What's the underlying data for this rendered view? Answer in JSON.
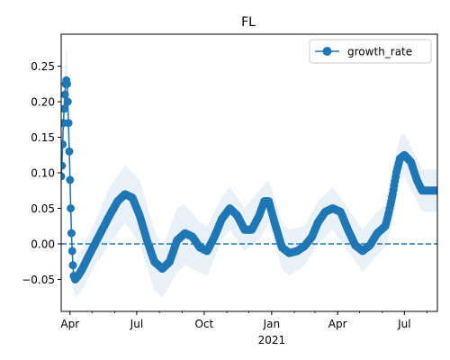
{
  "chart_data": {
    "type": "line",
    "title": "FL",
    "xlabel": "",
    "ylabel": "",
    "x_start": "2020-03-20",
    "x_end": "2021-08-15",
    "x_ticks": [
      {
        "date": "2020-04-01",
        "label": "Apr"
      },
      {
        "date": "2020-07-01",
        "label": "Jul"
      },
      {
        "date": "2020-10-01",
        "label": "Oct"
      },
      {
        "date": "2021-01-01",
        "label": "Jan"
      },
      {
        "date": "2021-04-01",
        "label": "Apr"
      },
      {
        "date": "2021-07-01",
        "label": "Jul"
      }
    ],
    "x_year_label": {
      "date": "2021-01-01",
      "label": "2021"
    },
    "y_ticks": [
      -0.05,
      0.0,
      0.05,
      0.1,
      0.15,
      0.2,
      0.25
    ],
    "y_tick_labels": [
      "−0.05",
      "0.00",
      "0.05",
      "0.10",
      "0.15",
      "0.20",
      "0.25"
    ],
    "ylim": [
      -0.095,
      0.295
    ],
    "grid": false,
    "legend_position": "top-right",
    "colors": {
      "line": "#1f77b4",
      "band": "#1f77b4",
      "reference": "#1f77b4"
    },
    "reference_line": {
      "y": 0.0,
      "style": "dashed"
    },
    "series": [
      {
        "name": "growth_rate",
        "marker": "circle",
        "points": [
          [
            "2020-03-20",
            0.095
          ],
          [
            "2020-03-21",
            0.11
          ],
          [
            "2020-03-22",
            0.14
          ],
          [
            "2020-03-23",
            0.17
          ],
          [
            "2020-03-24",
            0.19
          ],
          [
            "2020-03-25",
            0.21
          ],
          [
            "2020-03-26",
            0.225
          ],
          [
            "2020-03-27",
            0.23
          ],
          [
            "2020-03-28",
            0.225
          ],
          [
            "2020-03-29",
            0.2
          ],
          [
            "2020-03-30",
            0.17
          ],
          [
            "2020-03-31",
            0.13
          ],
          [
            "2020-04-01",
            0.09
          ],
          [
            "2020-04-02",
            0.05
          ],
          [
            "2020-04-03",
            0.015
          ],
          [
            "2020-04-04",
            -0.01
          ],
          [
            "2020-04-05",
            -0.03
          ],
          [
            "2020-04-06",
            -0.045
          ],
          [
            "2020-04-08",
            -0.05
          ],
          [
            "2020-04-12",
            -0.045
          ],
          [
            "2020-04-18",
            -0.035
          ],
          [
            "2020-04-25",
            -0.02
          ],
          [
            "2020-05-05",
            0.0
          ],
          [
            "2020-05-15",
            0.02
          ],
          [
            "2020-05-25",
            0.04
          ],
          [
            "2020-06-05",
            0.06
          ],
          [
            "2020-06-15",
            0.07
          ],
          [
            "2020-06-25",
            0.065
          ],
          [
            "2020-07-05",
            0.04
          ],
          [
            "2020-07-15",
            0.005
          ],
          [
            "2020-07-25",
            -0.025
          ],
          [
            "2020-08-05",
            -0.035
          ],
          [
            "2020-08-15",
            -0.025
          ],
          [
            "2020-08-25",
            0.005
          ],
          [
            "2020-09-05",
            0.015
          ],
          [
            "2020-09-15",
            0.01
          ],
          [
            "2020-09-25",
            -0.005
          ],
          [
            "2020-10-05",
            -0.01
          ],
          [
            "2020-10-15",
            0.01
          ],
          [
            "2020-10-25",
            0.035
          ],
          [
            "2020-11-05",
            0.05
          ],
          [
            "2020-11-15",
            0.04
          ],
          [
            "2020-11-25",
            0.02
          ],
          [
            "2020-12-05",
            0.02
          ],
          [
            "2020-12-15",
            0.04
          ],
          [
            "2020-12-22",
            0.06
          ],
          [
            "2020-12-28",
            0.06
          ],
          [
            "2021-01-05",
            0.03
          ],
          [
            "2021-01-15",
            -0.005
          ],
          [
            "2021-01-25",
            -0.013
          ],
          [
            "2021-02-05",
            -0.01
          ],
          [
            "2021-02-15",
            -0.003
          ],
          [
            "2021-02-25",
            0.01
          ],
          [
            "2021-03-05",
            0.03
          ],
          [
            "2021-03-15",
            0.045
          ],
          [
            "2021-03-25",
            0.05
          ],
          [
            "2021-04-05",
            0.045
          ],
          [
            "2021-04-15",
            0.02
          ],
          [
            "2021-04-25",
            -0.002
          ],
          [
            "2021-05-05",
            -0.01
          ],
          [
            "2021-05-15",
            -0.002
          ],
          [
            "2021-05-25",
            0.015
          ],
          [
            "2021-06-05",
            0.025
          ],
          [
            "2021-06-10",
            0.045
          ],
          [
            "2021-06-15",
            0.07
          ],
          [
            "2021-06-20",
            0.1
          ],
          [
            "2021-06-25",
            0.12
          ],
          [
            "2021-07-01",
            0.125
          ],
          [
            "2021-07-10",
            0.115
          ],
          [
            "2021-07-18",
            0.09
          ],
          [
            "2021-07-25",
            0.075
          ],
          [
            "2021-08-15",
            0.075
          ]
        ],
        "band": [
          [
            "2020-03-20",
            0.065,
            0.125
          ],
          [
            "2020-03-24",
            0.16,
            0.22
          ],
          [
            "2020-03-27",
            0.185,
            0.28
          ],
          [
            "2020-03-30",
            0.12,
            0.22
          ],
          [
            "2020-04-02",
            0.01,
            0.09
          ],
          [
            "2020-04-05",
            -0.06,
            0.0
          ],
          [
            "2020-04-08",
            -0.075,
            -0.025
          ],
          [
            "2020-04-18",
            -0.065,
            -0.005
          ],
          [
            "2020-05-05",
            -0.03,
            0.03
          ],
          [
            "2020-05-25",
            0.0,
            0.08
          ],
          [
            "2020-06-15",
            0.03,
            0.11
          ],
          [
            "2020-07-05",
            0.0,
            0.09
          ],
          [
            "2020-07-25",
            -0.065,
            0.02
          ],
          [
            "2020-08-05",
            -0.075,
            -0.005
          ],
          [
            "2020-08-25",
            -0.04,
            0.05
          ],
          [
            "2020-09-05",
            -0.03,
            0.055
          ],
          [
            "2020-09-25",
            -0.04,
            0.03
          ],
          [
            "2020-10-05",
            -0.045,
            0.025
          ],
          [
            "2020-10-25",
            0.005,
            0.065
          ],
          [
            "2020-11-05",
            0.02,
            0.08
          ],
          [
            "2020-11-25",
            -0.01,
            0.05
          ],
          [
            "2020-12-15",
            0.005,
            0.075
          ],
          [
            "2020-12-28",
            0.03,
            0.09
          ],
          [
            "2021-01-15",
            -0.035,
            0.03
          ],
          [
            "2021-01-25",
            -0.045,
            0.02
          ],
          [
            "2021-02-15",
            -0.03,
            0.025
          ],
          [
            "2021-03-05",
            0.0,
            0.06
          ],
          [
            "2021-03-25",
            0.02,
            0.08
          ],
          [
            "2021-04-15",
            -0.01,
            0.05
          ],
          [
            "2021-05-05",
            -0.04,
            0.02
          ],
          [
            "2021-05-25",
            -0.015,
            0.045
          ],
          [
            "2021-06-05",
            -0.005,
            0.055
          ],
          [
            "2021-06-15",
            0.03,
            0.11
          ],
          [
            "2021-06-25",
            0.09,
            0.15
          ],
          [
            "2021-07-01",
            0.095,
            0.155
          ],
          [
            "2021-07-18",
            0.06,
            0.12
          ],
          [
            "2021-07-25",
            0.045,
            0.105
          ],
          [
            "2021-08-15",
            0.045,
            0.105
          ]
        ]
      }
    ]
  }
}
